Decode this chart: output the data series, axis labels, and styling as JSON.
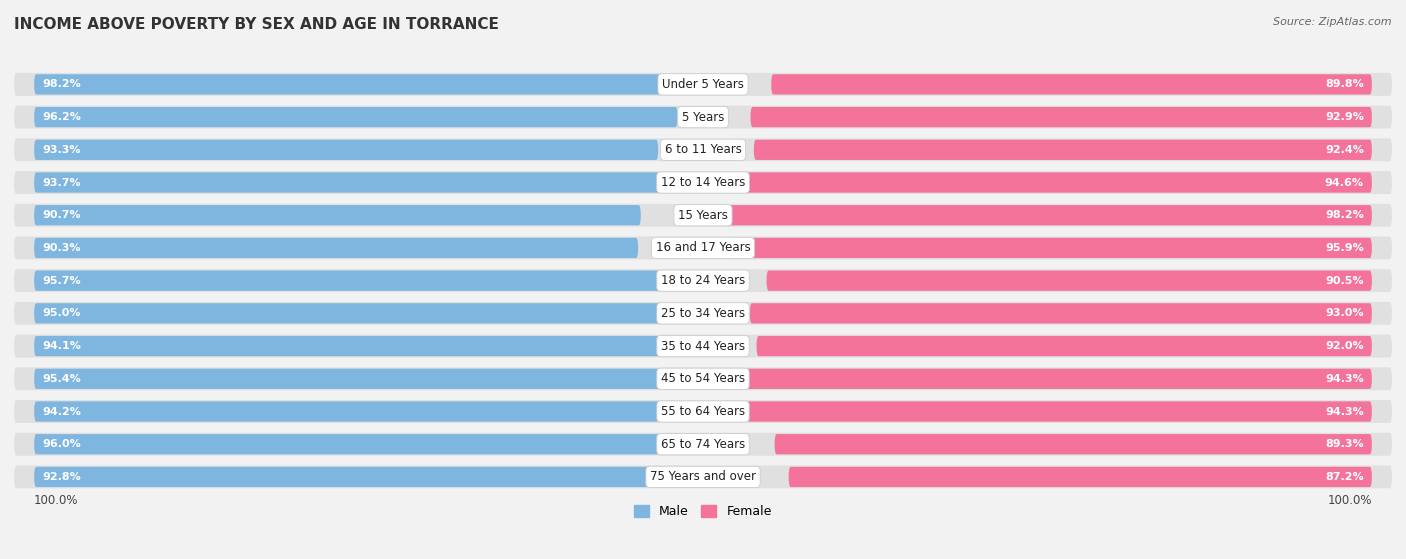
{
  "title": "INCOME ABOVE POVERTY BY SEX AND AGE IN TORRANCE",
  "source": "Source: ZipAtlas.com",
  "categories": [
    "Under 5 Years",
    "5 Years",
    "6 to 11 Years",
    "12 to 14 Years",
    "15 Years",
    "16 and 17 Years",
    "18 to 24 Years",
    "25 to 34 Years",
    "35 to 44 Years",
    "45 to 54 Years",
    "55 to 64 Years",
    "65 to 74 Years",
    "75 Years and over"
  ],
  "male_values": [
    98.2,
    96.2,
    93.3,
    93.7,
    90.7,
    90.3,
    95.7,
    95.0,
    94.1,
    95.4,
    94.2,
    96.0,
    92.8
  ],
  "female_values": [
    89.8,
    92.9,
    92.4,
    94.6,
    98.2,
    95.9,
    90.5,
    93.0,
    92.0,
    94.3,
    94.3,
    89.3,
    87.2
  ],
  "male_color": "#7EB6E0",
  "female_color": "#F4739A",
  "bg_color": "#F2F2F2",
  "row_bg_color": "#E0E0E0",
  "title_fontsize": 11,
  "label_fontsize": 8.5,
  "value_fontsize": 8,
  "axis_max": 100.0,
  "legend_male": "Male",
  "legend_female": "Female"
}
